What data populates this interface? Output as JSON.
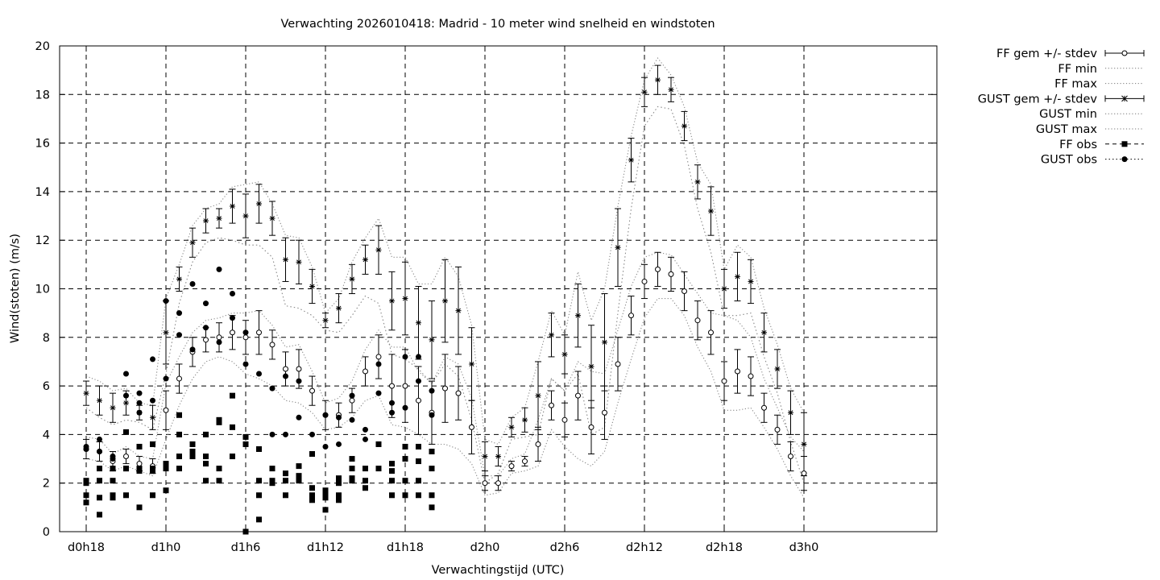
{
  "chart_data": {
    "type": "line",
    "title": "Verwachting 2026010418: Madrid - 10 meter wind snelheid en windstoten",
    "xlabel": "Verwachtingstijd (UTC)",
    "ylabel": "Wind(stoten) (m/s)",
    "ylim": [
      0,
      20
    ],
    "xlim_hours": [
      -8,
      58
    ],
    "yticks": [
      0,
      2,
      4,
      6,
      8,
      10,
      12,
      14,
      16,
      18,
      20
    ],
    "xticks": [
      {
        "h": -6,
        "label": "d0h18"
      },
      {
        "h": 0,
        "label": "d1h0"
      },
      {
        "h": 6,
        "label": "d1h6"
      },
      {
        "h": 12,
        "label": "d1h12"
      },
      {
        "h": 18,
        "label": "d1h18"
      },
      {
        "h": 24,
        "label": "d2h0"
      },
      {
        "h": 30,
        "label": "d2h6"
      },
      {
        "h": 36,
        "label": "d2h12"
      },
      {
        "h": 42,
        "label": "d2h18"
      },
      {
        "h": 48,
        "label": "d3h0"
      }
    ],
    "grid": true,
    "legend_position": "outside-top-right",
    "legend": [
      {
        "label": "FF gem +/- stdev",
        "style": "errorbar-circle"
      },
      {
        "label": "FF min",
        "style": "dotted"
      },
      {
        "label": "FF max",
        "style": "dotted"
      },
      {
        "label": "GUST gem +/- stdev",
        "style": "errorbar-star"
      },
      {
        "label": "GUST min",
        "style": "dotted"
      },
      {
        "label": "GUST max",
        "style": "dotted"
      },
      {
        "label": "FF obs",
        "style": "dashed-square"
      },
      {
        "label": "GUST obs",
        "style": "dotted-circle"
      }
    ],
    "x": [
      -6,
      -5,
      -4,
      -3,
      -2,
      -1,
      0,
      1,
      2,
      3,
      4,
      5,
      6,
      7,
      8,
      9,
      10,
      11,
      12,
      13,
      14,
      15,
      16,
      17,
      18,
      19,
      20,
      21,
      22,
      23,
      24,
      25,
      26,
      27,
      28,
      29,
      30,
      31,
      32,
      33,
      34,
      35,
      36,
      37,
      38,
      39,
      40,
      41,
      42,
      43,
      44,
      45,
      46,
      47,
      48
    ],
    "ff_mean": [
      3.4,
      3.3,
      2.9,
      3.1,
      2.8,
      2.7,
      5.0,
      6.3,
      7.4,
      7.9,
      8.0,
      8.2,
      8.0,
      8.2,
      7.7,
      6.7,
      6.7,
      5.8,
      4.8,
      4.8,
      5.4,
      6.6,
      7.2,
      6.0,
      6.0,
      5.4,
      4.9,
      5.9,
      5.7,
      4.3,
      2.0,
      2.0,
      2.7,
      2.9,
      3.6,
      5.2,
      4.6,
      5.6,
      4.3,
      4.9,
      6.9,
      8.9,
      10.3,
      10.8,
      10.6,
      9.9,
      8.7,
      8.2,
      6.2,
      6.6,
      6.4,
      5.1,
      4.2,
      3.1,
      2.4
    ],
    "ff_sd": [
      0.4,
      0.4,
      0.4,
      0.3,
      0.3,
      0.3,
      0.8,
      0.6,
      0.6,
      0.5,
      0.6,
      0.7,
      0.7,
      0.9,
      0.6,
      0.7,
      0.8,
      0.6,
      0.6,
      0.5,
      0.5,
      0.6,
      0.9,
      1.3,
      1.5,
      1.4,
      1.3,
      1.4,
      1.1,
      1.1,
      0.3,
      0.3,
      0.2,
      0.2,
      0.7,
      0.6,
      0.7,
      1.0,
      1.1,
      1.1,
      1.1,
      0.8,
      0.7,
      0.7,
      0.7,
      0.8,
      0.8,
      0.9,
      0.8,
      0.9,
      0.8,
      0.6,
      0.6,
      0.6,
      0.7
    ],
    "ff_min": [
      3.0,
      2.9,
      2.5,
      2.7,
      2.5,
      2.3,
      3.8,
      5.2,
      6.3,
      7.0,
      7.2,
      7.0,
      6.5,
      6.3,
      6.0,
      5.4,
      5.3,
      4.9,
      4.2,
      4.3,
      4.7,
      5.4,
      5.6,
      4.4,
      4.3,
      4.0,
      3.6,
      3.6,
      3.4,
      2.8,
      1.5,
      1.6,
      2.4,
      2.5,
      2.7,
      4.2,
      3.5,
      3.0,
      2.7,
      3.3,
      5.3,
      7.1,
      8.8,
      9.6,
      9.6,
      8.9,
      7.6,
      6.6,
      5.0,
      5.0,
      5.1,
      4.3,
      3.4,
      2.3,
      1.4
    ],
    "ff_max": [
      3.9,
      3.8,
      3.2,
      3.5,
      3.1,
      3.0,
      6.1,
      7.2,
      8.2,
      8.7,
      8.8,
      9.0,
      9.0,
      9.1,
      8.5,
      7.6,
      7.7,
      6.6,
      5.3,
      5.5,
      6.2,
      7.5,
      8.3,
      7.6,
      7.6,
      6.6,
      6.1,
      7.2,
      6.9,
      5.5,
      2.3,
      2.3,
      3.0,
      3.2,
      4.6,
      6.3,
      5.8,
      7.0,
      6.6,
      6.5,
      8.3,
      10.1,
      11.3,
      11.5,
      11.4,
      10.6,
      9.8,
      9.0,
      8.9,
      8.7,
      8.0,
      6.3,
      5.1,
      3.9,
      3.3
    ],
    "gust_mean": [
      5.7,
      5.4,
      5.1,
      5.3,
      4.9,
      4.7,
      8.2,
      10.4,
      11.9,
      12.8,
      12.9,
      13.4,
      13.0,
      13.5,
      12.9,
      11.2,
      11.1,
      10.1,
      8.7,
      9.2,
      10.4,
      11.2,
      11.6,
      9.5,
      9.6,
      8.6,
      7.9,
      9.5,
      9.1,
      6.9,
      3.1,
      3.1,
      4.3,
      4.6,
      5.6,
      8.1,
      7.3,
      8.9,
      6.8,
      7.8,
      11.7,
      15.3,
      18.1,
      18.6,
      18.2,
      16.7,
      14.4,
      13.2,
      10.0,
      10.5,
      10.3,
      8.2,
      6.7,
      4.9,
      3.6
    ],
    "gust_sd": [
      0.5,
      0.6,
      0.6,
      0.5,
      0.3,
      0.5,
      1.3,
      0.5,
      0.6,
      0.5,
      0.4,
      0.7,
      0.9,
      0.8,
      0.7,
      0.9,
      0.9,
      0.7,
      0.3,
      0.6,
      0.6,
      0.6,
      1.0,
      1.2,
      1.5,
      1.5,
      1.6,
      1.7,
      1.8,
      1.5,
      0.6,
      0.4,
      0.4,
      0.5,
      1.4,
      0.9,
      0.8,
      1.3,
      1.7,
      2.0,
      1.6,
      0.9,
      0.6,
      0.6,
      0.5,
      0.6,
      0.7,
      1.0,
      0.8,
      1.0,
      0.9,
      0.8,
      0.8,
      0.9,
      1.3
    ],
    "gust_min": [
      5.1,
      4.7,
      4.4,
      4.6,
      4.5,
      4.2,
      6.5,
      9.4,
      11.1,
      11.9,
      12.1,
      12.0,
      11.8,
      11.8,
      11.3,
      9.3,
      9.2,
      8.9,
      8.3,
      8.2,
      8.9,
      9.7,
      9.4,
      7.3,
      7.1,
      6.7,
      6.1,
      6.9,
      6.4,
      4.6,
      2.0,
      2.4,
      3.8,
      3.9,
      4.0,
      6.3,
      5.8,
      6.5,
      4.0,
      4.3,
      9.0,
      13.3,
      16.7,
      17.5,
      17.4,
      15.9,
      13.3,
      11.5,
      8.9,
      8.9,
      9.0,
      7.2,
      5.7,
      3.7,
      2.0
    ],
    "gust_max": [
      6.4,
      6.2,
      5.8,
      5.9,
      5.3,
      5.2,
      9.6,
      11.0,
      12.6,
      13.3,
      13.5,
      14.2,
      14.3,
      14.4,
      13.5,
      12.2,
      12.1,
      10.9,
      9.0,
      9.6,
      11.1,
      12.1,
      12.9,
      11.3,
      11.3,
      10.2,
      10.2,
      11.3,
      10.5,
      8.5,
      3.8,
      3.6,
      4.7,
      5.1,
      7.0,
      9.1,
      8.1,
      10.7,
      8.7,
      10.0,
      13.4,
      16.3,
      18.6,
      19.5,
      18.8,
      17.5,
      15.2,
      14.3,
      10.8,
      11.8,
      11.3,
      9.2,
      7.7,
      5.9,
      4.9
    ],
    "ff_obs": [
      [
        -6,
        2.1
      ],
      [
        -6,
        2.0
      ],
      [
        -6,
        1.5
      ],
      [
        -6,
        1.2
      ],
      [
        -5,
        2.6
      ],
      [
        -5,
        2.1
      ],
      [
        -5,
        1.4
      ],
      [
        -5,
        0.7
      ],
      [
        -4,
        2.6
      ],
      [
        -4,
        2.1
      ],
      [
        -4,
        1.5
      ],
      [
        -4,
        1.4
      ],
      [
        -3,
        4.1
      ],
      [
        -3,
        2.6
      ],
      [
        -3,
        2.6
      ],
      [
        -3,
        1.5
      ],
      [
        -2,
        3.5
      ],
      [
        -2,
        2.6
      ],
      [
        -2,
        2.5
      ],
      [
        -2,
        1.0
      ],
      [
        -1,
        3.6
      ],
      [
        -1,
        2.6
      ],
      [
        -1,
        2.5
      ],
      [
        -1,
        1.5
      ],
      [
        0,
        2.8
      ],
      [
        0,
        2.6
      ],
      [
        0,
        1.7
      ],
      [
        1,
        4.8
      ],
      [
        1,
        4.0
      ],
      [
        1,
        3.1
      ],
      [
        1,
        2.6
      ],
      [
        2,
        3.6
      ],
      [
        2,
        3.3
      ],
      [
        2,
        3.1
      ],
      [
        3,
        4.0
      ],
      [
        3,
        3.1
      ],
      [
        3,
        2.8
      ],
      [
        3,
        2.1
      ],
      [
        4,
        4.6
      ],
      [
        4,
        4.5
      ],
      [
        4,
        2.6
      ],
      [
        4,
        2.1
      ],
      [
        5,
        5.6
      ],
      [
        5,
        4.3
      ],
      [
        5,
        3.1
      ],
      [
        6,
        3.9
      ],
      [
        6,
        3.6
      ],
      [
        6,
        0.0
      ],
      [
        7,
        3.4
      ],
      [
        7,
        2.1
      ],
      [
        7,
        1.5
      ],
      [
        7,
        0.5
      ],
      [
        8,
        2.6
      ],
      [
        8,
        2.1
      ],
      [
        8,
        2.0
      ],
      [
        9,
        2.4
      ],
      [
        9,
        2.1
      ],
      [
        9,
        1.5
      ],
      [
        10,
        2.7
      ],
      [
        10,
        2.3
      ],
      [
        10,
        2.1
      ],
      [
        11,
        3.2
      ],
      [
        11,
        1.8
      ],
      [
        11,
        1.5
      ],
      [
        11,
        1.3
      ],
      [
        12,
        1.7
      ],
      [
        12,
        1.5
      ],
      [
        12,
        1.4
      ],
      [
        12,
        0.9
      ],
      [
        13,
        2.2
      ],
      [
        13,
        2.0
      ],
      [
        13,
        1.5
      ],
      [
        13,
        1.3
      ],
      [
        14,
        3.0
      ],
      [
        14,
        2.6
      ],
      [
        14,
        2.2
      ],
      [
        14,
        2.1
      ],
      [
        15,
        2.6
      ],
      [
        15,
        2.1
      ],
      [
        15,
        1.8
      ],
      [
        16,
        3.6
      ],
      [
        16,
        2.6
      ],
      [
        17,
        2.8
      ],
      [
        17,
        2.5
      ],
      [
        17,
        2.1
      ],
      [
        17,
        1.5
      ],
      [
        18,
        3.5
      ],
      [
        18,
        3.0
      ],
      [
        18,
        2.1
      ],
      [
        18,
        1.5
      ],
      [
        19,
        3.5
      ],
      [
        19,
        2.9
      ],
      [
        19,
        2.1
      ],
      [
        19,
        1.5
      ],
      [
        20,
        3.3
      ],
      [
        20,
        2.6
      ],
      [
        20,
        1.5
      ],
      [
        20,
        1.0
      ]
    ],
    "gust_obs": [
      [
        -6,
        3.5
      ],
      [
        -6,
        3.4
      ],
      [
        -5,
        3.8
      ],
      [
        -5,
        3.3
      ],
      [
        -4,
        3.1
      ],
      [
        -4,
        3.0
      ],
      [
        -3,
        6.5
      ],
      [
        -3,
        5.6
      ],
      [
        -2,
        5.7
      ],
      [
        -2,
        5.3
      ],
      [
        -2,
        4.9
      ],
      [
        -1,
        7.1
      ],
      [
        -1,
        5.4
      ],
      [
        0,
        9.5
      ],
      [
        0,
        6.3
      ],
      [
        1,
        9.0
      ],
      [
        1,
        8.1
      ],
      [
        2,
        10.2
      ],
      [
        2,
        7.5
      ],
      [
        3,
        9.4
      ],
      [
        3,
        8.4
      ],
      [
        4,
        10.8
      ],
      [
        4,
        7.8
      ],
      [
        5,
        9.8
      ],
      [
        5,
        8.8
      ],
      [
        6,
        8.2
      ],
      [
        6,
        6.9
      ],
      [
        7,
        6.5
      ],
      [
        8,
        5.9
      ],
      [
        8,
        4.0
      ],
      [
        9,
        6.4
      ],
      [
        9,
        4.0
      ],
      [
        10,
        6.2
      ],
      [
        10,
        4.7
      ],
      [
        11,
        4.0
      ],
      [
        12,
        4.8
      ],
      [
        12,
        3.5
      ],
      [
        13,
        4.7
      ],
      [
        13,
        3.6
      ],
      [
        14,
        5.6
      ],
      [
        14,
        4.6
      ],
      [
        15,
        4.2
      ],
      [
        15,
        3.8
      ],
      [
        16,
        6.9
      ],
      [
        16,
        5.7
      ],
      [
        17,
        5.3
      ],
      [
        17,
        4.9
      ],
      [
        18,
        7.2
      ],
      [
        18,
        5.1
      ],
      [
        19,
        7.2
      ],
      [
        19,
        6.2
      ],
      [
        20,
        5.8
      ],
      [
        20,
        4.8
      ]
    ]
  }
}
